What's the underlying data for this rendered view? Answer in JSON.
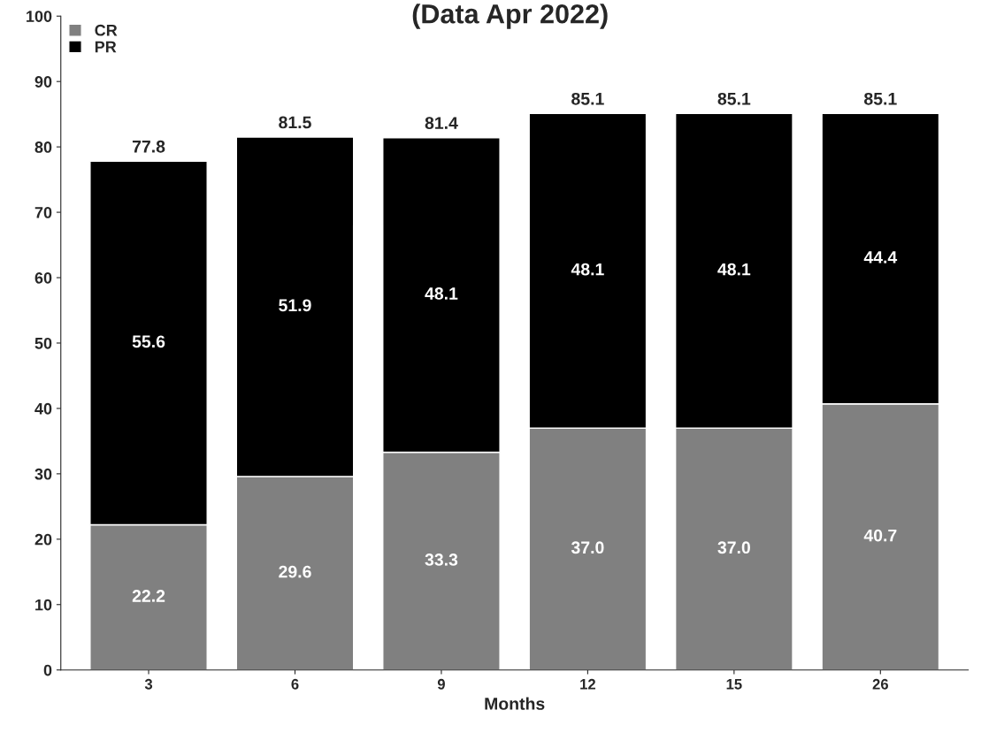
{
  "chart_data": {
    "type": "bar",
    "title": "(Data Apr 2022)",
    "xlabel": "Months",
    "categories": [
      "3",
      "6",
      "9",
      "12",
      "15",
      "26"
    ],
    "series": [
      {
        "name": "CR",
        "color": "#808080",
        "values": [
          22.2,
          29.6,
          33.3,
          37.0,
          37.0,
          40.7
        ],
        "value_labels": [
          "22.2",
          "29.6",
          "33.3",
          "37.0",
          "37.0",
          "40.7"
        ]
      },
      {
        "name": "PR",
        "color": "#000000",
        "values": [
          55.6,
          51.9,
          48.1,
          48.1,
          48.1,
          44.4
        ],
        "value_labels": [
          "55.6",
          "51.9",
          "48.1",
          "48.1",
          "48.1",
          "44.4"
        ]
      }
    ],
    "stacked": true,
    "totals": [
      "77.8",
      "81.5",
      "81.4",
      "85.1",
      "85.1",
      "85.1"
    ],
    "ylim": [
      0,
      100
    ],
    "yticks": [
      0,
      10,
      20,
      30,
      40,
      50,
      60,
      70,
      80,
      90,
      100
    ],
    "grid": false,
    "legend": "top left"
  }
}
